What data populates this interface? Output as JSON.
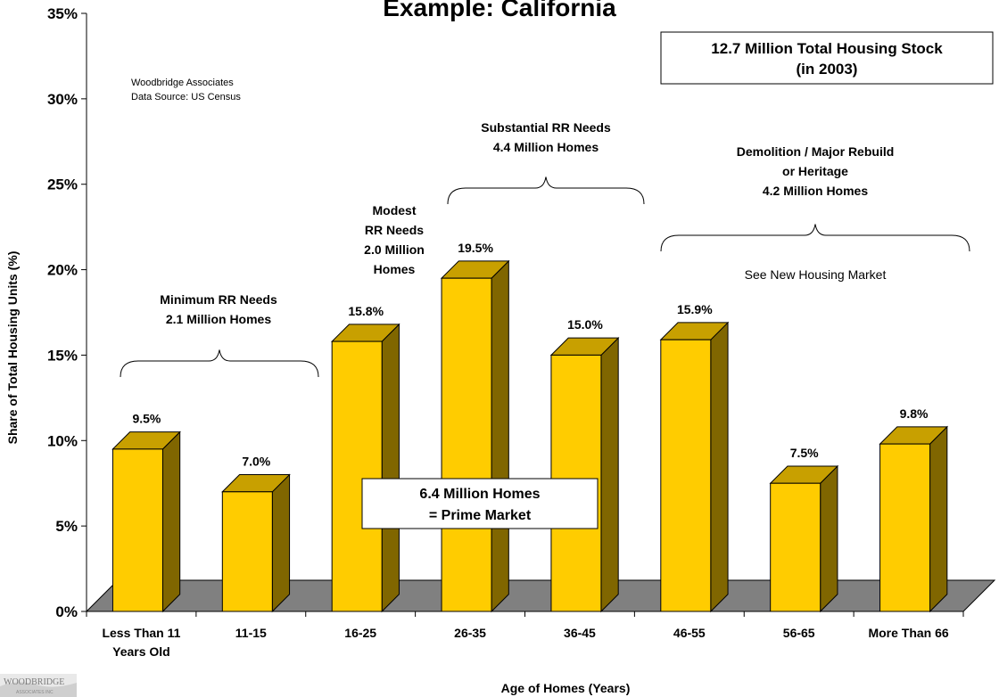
{
  "chart_data": {
    "type": "bar",
    "title": "Example: California",
    "xlabel": "Age of Homes (Years)",
    "ylabel": "Share of Total Housing Units (%)",
    "ylim": [
      0,
      35
    ],
    "yticks": [
      "0%",
      "5%",
      "10%",
      "15%",
      "20%",
      "25%",
      "30%",
      "35%"
    ],
    "categories": [
      "Less Than 11 Years Old",
      "11-15",
      "16-25",
      "26-35",
      "36-45",
      "46-55",
      "56-65",
      "More Than 66"
    ],
    "category_lines": [
      [
        "Less Than 11",
        "Years Old"
      ],
      [
        "11-15"
      ],
      [
        "16-25"
      ],
      [
        "26-35"
      ],
      [
        "36-45"
      ],
      [
        "46-55"
      ],
      [
        "56-65"
      ],
      [
        "More Than 66"
      ]
    ],
    "values": [
      9.5,
      7.0,
      15.8,
      19.5,
      15.0,
      15.9,
      7.5,
      9.8
    ],
    "data_labels": [
      "9.5%",
      "7.0%",
      "15.8%",
      "19.5%",
      "15.0%",
      "15.9%",
      "7.5%",
      "9.8%"
    ],
    "grid": false,
    "style": "3d-bar",
    "colors": {
      "bar_front": "#ffcc00",
      "bar_side": "#806600",
      "bar_top": "#c8a000",
      "floor": "#808080",
      "outline": "#000000"
    }
  },
  "annotations": {
    "source_lines": [
      "Woodbridge Associates",
      "Data Source: US Census"
    ],
    "stock_box_lines": [
      "12.7 Million Total Housing Stock",
      "(in 2003)"
    ],
    "prime_box_lines": [
      "6.4 Million Homes",
      "= Prime Market"
    ],
    "groups": [
      {
        "lines": [
          "Minimum RR Needs",
          "2.1 Million Homes"
        ],
        "from": 0,
        "to": 1
      },
      {
        "lines": [
          "Modest",
          "RR Needs",
          "2.0 Million",
          "Homes"
        ],
        "from": 2,
        "to": 2
      },
      {
        "lines": [
          "Substantial RR Needs",
          "4.4 Million Homes"
        ],
        "from": 3,
        "to": 4
      },
      {
        "lines": [
          "Demolition / Major Rebuild",
          "or Heritage",
          "4.2 Million Homes"
        ],
        "from": 5,
        "to": 7
      }
    ],
    "new_market_note": "See New Housing Market"
  },
  "logo": {
    "text": "WOODBRIDGE",
    "subtext": "ASSOCIATES INC"
  }
}
